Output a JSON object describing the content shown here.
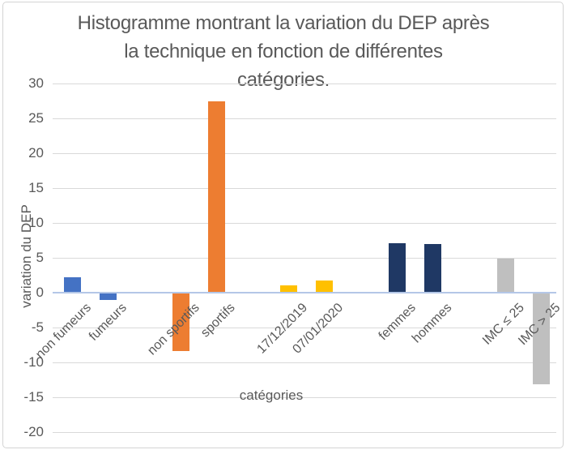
{
  "chart": {
    "title_lines": [
      "Histogramme montrant la variation du DEP après",
      "la technique en fonction de différentes",
      "catégories."
    ],
    "y_axis": {
      "title": "variation du DEP",
      "ticks": [
        30,
        25,
        20,
        15,
        10,
        5,
        0,
        -5,
        -10,
        -15,
        -20
      ]
    },
    "x_axis": {
      "title": "catégories"
    }
  },
  "chart_data": {
    "type": "bar",
    "title": "Histogramme montrant la variation du DEP après la technique en fonction de différentes catégories.",
    "xlabel": "catégories",
    "ylabel": "variation du DEP",
    "ylim": [
      -20,
      30
    ],
    "ytick_step": 5,
    "grid": true,
    "legend": false,
    "categories": [
      "non fumeurs",
      "fumeurs",
      "non sportifs",
      "sportifs",
      "17/12/2019",
      "07/01/2020",
      "femmes",
      "hommes",
      "IMC ≤ 25",
      "IMC > 25"
    ],
    "values": [
      2.2,
      -1.0,
      -8.4,
      27.5,
      1.1,
      1.7,
      7.1,
      7.0,
      4.9,
      -13.1
    ],
    "bar_colors": [
      "#4472C4",
      "#4472C4",
      "#ED7D31",
      "#ED7D31",
      "#FFC000",
      "#FFC000",
      "#1F3864",
      "#1F3864",
      "#BFBFBF",
      "#BFBFBF"
    ],
    "group_pairs": [
      [
        "non fumeurs",
        "fumeurs"
      ],
      [
        "non sportifs",
        "sportifs"
      ],
      [
        "17/12/2019",
        "07/01/2020"
      ],
      [
        "femmes",
        "hommes"
      ],
      [
        "IMC ≤ 25",
        "IMC > 25"
      ]
    ]
  },
  "colors": {
    "gridline": "#D9D9D9",
    "zero_axis_line": "#B4C7E7",
    "text": "#595959",
    "frame_border": "#D4D4D4",
    "background": "#FFFFFF"
  }
}
